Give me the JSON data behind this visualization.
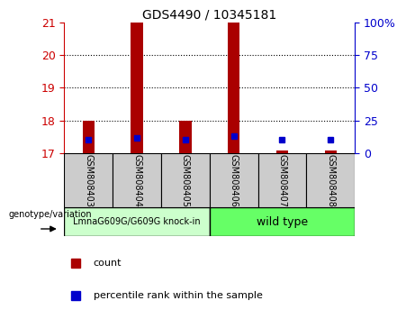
{
  "title": "GDS4490 / 10345181",
  "samples": [
    "GSM808403",
    "GSM808404",
    "GSM808405",
    "GSM808406",
    "GSM808407",
    "GSM808408"
  ],
  "ylim_left": [
    17,
    21
  ],
  "ylim_right": [
    0,
    100
  ],
  "yticks_left": [
    17,
    18,
    19,
    20,
    21
  ],
  "yticks_right": [
    0,
    25,
    50,
    75,
    100
  ],
  "red_bar_bottom": [
    17,
    17,
    17,
    17,
    17,
    17
  ],
  "red_bar_top": [
    18.0,
    21.0,
    18.0,
    21.0,
    17.08,
    17.08
  ],
  "blue_square_y": [
    17.42,
    17.47,
    17.42,
    17.52,
    17.42,
    17.42
  ],
  "group1_label": "LmnaG609G/G609G knock-in",
  "group2_label": "wild type",
  "group1_color": "#ccffcc",
  "group2_color": "#66ff66",
  "bar_color": "#aa0000",
  "blue_color": "#0000cc",
  "bar_width": 0.25,
  "ylabel_left_color": "#cc0000",
  "ylabel_right_color": "#0000cc",
  "sample_bg": "#cccccc",
  "legend_red_label": "count",
  "legend_blue_label": "percentile rank within the sample",
  "geno_label": "genotype/variation"
}
